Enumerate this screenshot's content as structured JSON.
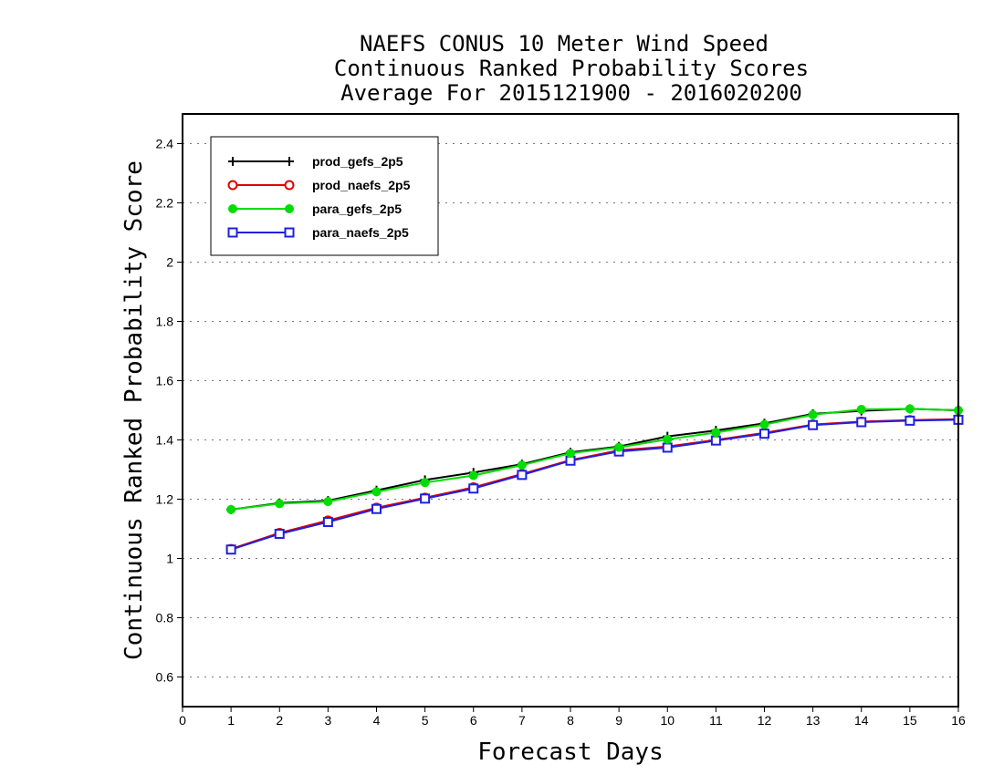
{
  "chart_data": {
    "type": "line",
    "title_lines": [
      "NAEFS CONUS 10 Meter Wind Speed",
      "Continuous Ranked Probability Scores",
      "Average For 2015121900 - 2016020200"
    ],
    "xlabel": "Forecast Days",
    "ylabel": "Continuous Ranked Probability Score",
    "xlim": [
      0,
      16
    ],
    "ylim": [
      0.5,
      2.5
    ],
    "x_ticks": [
      0,
      1,
      2,
      3,
      4,
      5,
      6,
      7,
      8,
      9,
      10,
      11,
      12,
      13,
      14,
      15,
      16
    ],
    "y_ticks": [
      0.6,
      0.8,
      1,
      1.2,
      1.4,
      1.6,
      1.8,
      2,
      2.2,
      2.4
    ],
    "y_tick_labels": [
      "0.6",
      "0.8",
      "1",
      "1.2",
      "1.4",
      "1.6",
      "1.8",
      "2",
      "2.2",
      "2.4"
    ],
    "grid": "horizontal dotted",
    "legend_position": "top-left",
    "x": [
      1,
      2,
      3,
      4,
      5,
      6,
      7,
      8,
      9,
      10,
      11,
      12,
      13,
      14,
      15,
      16
    ],
    "series": [
      {
        "name": "prod_gefs_2p5",
        "color": "#000000",
        "marker": "plus",
        "values": [
          1.165,
          1.187,
          1.195,
          1.23,
          1.265,
          1.29,
          1.318,
          1.358,
          1.378,
          1.412,
          1.432,
          1.456,
          1.488,
          1.498,
          1.505,
          1.5
        ]
      },
      {
        "name": "prod_naefs_2p5",
        "color": "#e00000",
        "marker": "open-circle",
        "values": [
          1.032,
          1.086,
          1.128,
          1.171,
          1.205,
          1.24,
          1.285,
          1.332,
          1.365,
          1.378,
          1.4,
          1.424,
          1.452,
          1.462,
          1.467,
          1.47
        ]
      },
      {
        "name": "para_gefs_2p5",
        "color": "#00dd00",
        "marker": "filled-circle",
        "values": [
          1.165,
          1.185,
          1.192,
          1.225,
          1.256,
          1.28,
          1.315,
          1.355,
          1.375,
          1.402,
          1.425,
          1.452,
          1.485,
          1.503,
          1.505,
          1.5
        ]
      },
      {
        "name": "para_naefs_2p5",
        "color": "#2020e0",
        "marker": "open-square",
        "values": [
          1.03,
          1.083,
          1.123,
          1.167,
          1.202,
          1.236,
          1.282,
          1.33,
          1.361,
          1.374,
          1.398,
          1.421,
          1.45,
          1.46,
          1.465,
          1.468
        ]
      }
    ]
  }
}
